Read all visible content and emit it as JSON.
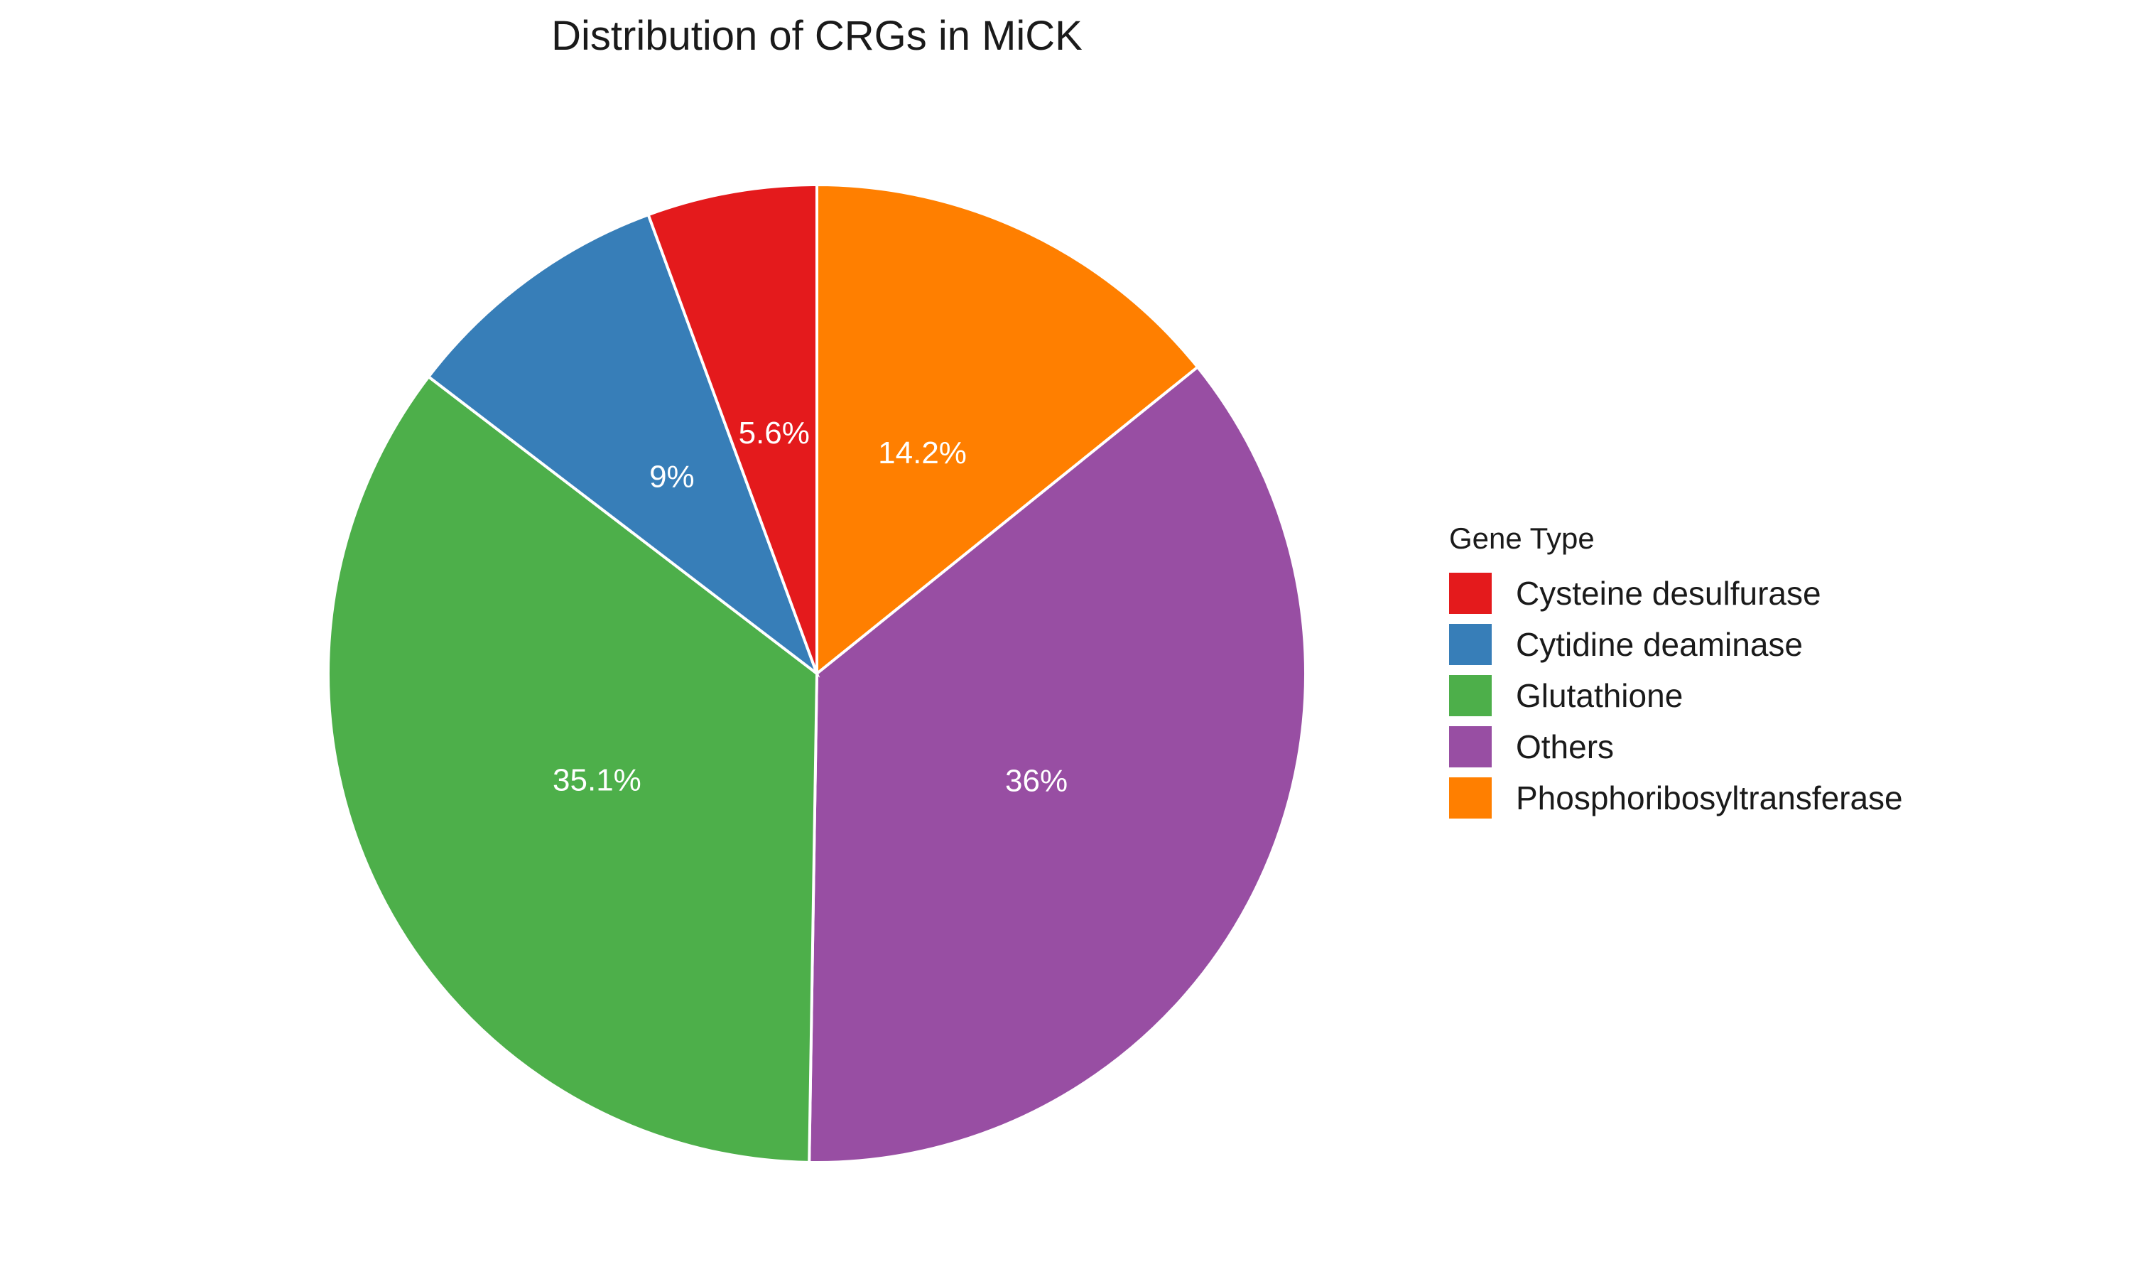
{
  "chart_data": {
    "type": "pie",
    "title": "Distribution of CRGs in MiCK",
    "legend": {
      "title": "Gene Type",
      "placement": "right"
    },
    "start_angle_deg": 0,
    "direction": "clockwise",
    "slices": [
      {
        "name": "Phosphoribosyltransferase",
        "value": 14.2,
        "label": "14.2%",
        "color": "#ff7f00"
      },
      {
        "name": "Others",
        "value": 36.0,
        "label": "36%",
        "color": "#984ea3"
      },
      {
        "name": "Glutathione",
        "value": 35.1,
        "label": "35.1%",
        "color": "#4daf4a"
      },
      {
        "name": "Cytidine deaminase",
        "value": 9.0,
        "label": "9%",
        "color": "#377eb8"
      },
      {
        "name": "Cysteine desulfurase",
        "value": 5.6,
        "label": "5.6%",
        "color": "#e41a1c"
      }
    ],
    "legend_order": [
      "Cysteine desulfurase",
      "Cytidine deaminase",
      "Glutathione",
      "Others",
      "Phosphoribosyltransferase"
    ]
  }
}
